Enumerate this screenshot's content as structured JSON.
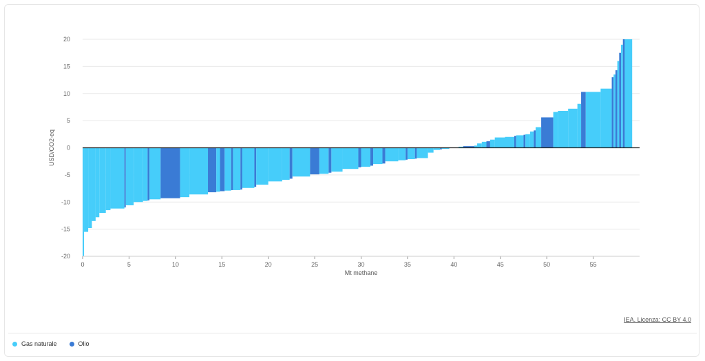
{
  "colors": {
    "gas": "#46cdfa",
    "oil": "#3a7bd5",
    "grid": "#e9e9e9",
    "zero": "#222222",
    "axis_text": "#666666"
  },
  "chart_data": {
    "type": "bar",
    "subtype": "marginal-abatement-cost-curve",
    "title": "",
    "xlabel": "Mt methane",
    "ylabel": "USD/CO2-eq",
    "xlim": [
      0,
      60
    ],
    "ylim": [
      -20,
      20
    ],
    "xticks": [
      0,
      5,
      10,
      15,
      20,
      25,
      30,
      35,
      40,
      45,
      50,
      55
    ],
    "yticks": [
      -20,
      -15,
      -10,
      -5,
      0,
      5,
      10,
      15,
      20
    ],
    "grid": true,
    "legend_position": "bottom-left",
    "series": [
      {
        "name": "Gas naturale",
        "key": "gas"
      },
      {
        "name": "Olio",
        "key": "oil"
      }
    ],
    "segments": [
      {
        "series": "gas",
        "x0": 0,
        "x1": 0.15,
        "y": -20
      },
      {
        "series": "gas",
        "x0": 0.15,
        "x1": 0.6,
        "y": -15.5
      },
      {
        "series": "gas",
        "x0": 0.6,
        "x1": 1.0,
        "y": -14.8
      },
      {
        "series": "gas",
        "x0": 1.0,
        "x1": 1.4,
        "y": -13.5
      },
      {
        "series": "gas",
        "x0": 1.4,
        "x1": 1.8,
        "y": -12.8
      },
      {
        "series": "gas",
        "x0": 1.8,
        "x1": 2.5,
        "y": -12.0
      },
      {
        "series": "gas",
        "x0": 2.5,
        "x1": 3.0,
        "y": -11.5
      },
      {
        "series": "gas",
        "x0": 3.0,
        "x1": 4.5,
        "y": -11.2
      },
      {
        "series": "oil",
        "x0": 4.5,
        "x1": 4.65,
        "y": -11.0
      },
      {
        "series": "gas",
        "x0": 4.65,
        "x1": 5.5,
        "y": -10.6
      },
      {
        "series": "gas",
        "x0": 5.5,
        "x1": 6.5,
        "y": -10.0
      },
      {
        "series": "gas",
        "x0": 6.5,
        "x1": 7.0,
        "y": -9.8
      },
      {
        "series": "oil",
        "x0": 7.0,
        "x1": 7.2,
        "y": -9.7
      },
      {
        "series": "gas",
        "x0": 7.2,
        "x1": 8.4,
        "y": -9.5
      },
      {
        "series": "oil",
        "x0": 8.4,
        "x1": 10.5,
        "y": -9.3
      },
      {
        "series": "gas",
        "x0": 10.5,
        "x1": 11.5,
        "y": -9.1
      },
      {
        "series": "gas",
        "x0": 11.5,
        "x1": 13.5,
        "y": -8.6
      },
      {
        "series": "oil",
        "x0": 13.5,
        "x1": 14.4,
        "y": -8.2
      },
      {
        "series": "gas",
        "x0": 14.4,
        "x1": 14.8,
        "y": -8.1
      },
      {
        "series": "oil",
        "x0": 14.8,
        "x1": 15.3,
        "y": -8.0
      },
      {
        "series": "gas",
        "x0": 15.3,
        "x1": 16.0,
        "y": -7.9
      },
      {
        "series": "oil",
        "x0": 16.0,
        "x1": 16.2,
        "y": -7.8
      },
      {
        "series": "gas",
        "x0": 16.2,
        "x1": 17.0,
        "y": -7.8
      },
      {
        "series": "oil",
        "x0": 17.0,
        "x1": 17.2,
        "y": -7.7
      },
      {
        "series": "gas",
        "x0": 17.2,
        "x1": 18.5,
        "y": -7.4
      },
      {
        "series": "oil",
        "x0": 18.5,
        "x1": 18.7,
        "y": -7.2
      },
      {
        "series": "gas",
        "x0": 18.7,
        "x1": 20.0,
        "y": -6.8
      },
      {
        "series": "gas",
        "x0": 20.0,
        "x1": 21.5,
        "y": -6.2
      },
      {
        "series": "gas",
        "x0": 21.5,
        "x1": 22.3,
        "y": -5.9
      },
      {
        "series": "oil",
        "x0": 22.3,
        "x1": 22.6,
        "y": -5.7
      },
      {
        "series": "gas",
        "x0": 22.6,
        "x1": 24.5,
        "y": -5.3
      },
      {
        "series": "oil",
        "x0": 24.5,
        "x1": 25.5,
        "y": -4.9
      },
      {
        "series": "gas",
        "x0": 25.5,
        "x1": 26.5,
        "y": -4.8
      },
      {
        "series": "oil",
        "x0": 26.5,
        "x1": 26.8,
        "y": -4.6
      },
      {
        "series": "gas",
        "x0": 26.8,
        "x1": 28.0,
        "y": -4.4
      },
      {
        "series": "gas",
        "x0": 28.0,
        "x1": 29.7,
        "y": -3.9
      },
      {
        "series": "oil",
        "x0": 29.7,
        "x1": 30.0,
        "y": -3.6
      },
      {
        "series": "gas",
        "x0": 30.0,
        "x1": 31.0,
        "y": -3.5
      },
      {
        "series": "oil",
        "x0": 31.0,
        "x1": 31.3,
        "y": -3.3
      },
      {
        "series": "gas",
        "x0": 31.3,
        "x1": 32.3,
        "y": -3.0
      },
      {
        "series": "oil",
        "x0": 32.3,
        "x1": 32.6,
        "y": -2.9
      },
      {
        "series": "gas",
        "x0": 32.6,
        "x1": 34.0,
        "y": -2.5
      },
      {
        "series": "gas",
        "x0": 34.0,
        "x1": 34.8,
        "y": -2.3
      },
      {
        "series": "oil",
        "x0": 34.8,
        "x1": 35.0,
        "y": -2.2
      },
      {
        "series": "gas",
        "x0": 35.0,
        "x1": 35.8,
        "y": -2.1
      },
      {
        "series": "oil",
        "x0": 35.8,
        "x1": 36.0,
        "y": -2.0
      },
      {
        "series": "gas",
        "x0": 36.0,
        "x1": 37.2,
        "y": -1.9
      },
      {
        "series": "gas",
        "x0": 37.2,
        "x1": 37.8,
        "y": -0.9
      },
      {
        "series": "gas",
        "x0": 37.8,
        "x1": 38.5,
        "y": -0.4
      },
      {
        "series": "oil",
        "x0": 38.5,
        "x1": 38.7,
        "y": -0.3
      },
      {
        "series": "gas",
        "x0": 38.7,
        "x1": 39.5,
        "y": -0.2
      },
      {
        "series": "gas",
        "x0": 39.5,
        "x1": 40.5,
        "y": 0.05
      },
      {
        "series": "gas",
        "x0": 40.5,
        "x1": 41.0,
        "y": 0.2
      },
      {
        "series": "oil",
        "x0": 41.0,
        "x1": 42.2,
        "y": 0.3
      },
      {
        "series": "gas",
        "x0": 42.2,
        "x1": 42.5,
        "y": 0.4
      },
      {
        "series": "gas",
        "x0": 42.5,
        "x1": 43.0,
        "y": 0.8
      },
      {
        "series": "gas",
        "x0": 43.0,
        "x1": 43.5,
        "y": 1.1
      },
      {
        "series": "oil",
        "x0": 43.5,
        "x1": 43.9,
        "y": 1.2
      },
      {
        "series": "gas",
        "x0": 43.9,
        "x1": 44.4,
        "y": 1.5
      },
      {
        "series": "gas",
        "x0": 44.4,
        "x1": 45.5,
        "y": 1.9
      },
      {
        "series": "gas",
        "x0": 45.5,
        "x1": 46.5,
        "y": 2.0
      },
      {
        "series": "oil",
        "x0": 46.5,
        "x1": 46.7,
        "y": 2.2
      },
      {
        "series": "gas",
        "x0": 46.7,
        "x1": 47.5,
        "y": 2.3
      },
      {
        "series": "oil",
        "x0": 47.5,
        "x1": 47.7,
        "y": 2.4
      },
      {
        "series": "gas",
        "x0": 47.7,
        "x1": 48.2,
        "y": 2.5
      },
      {
        "series": "gas",
        "x0": 48.2,
        "x1": 48.6,
        "y": 3.0
      },
      {
        "series": "oil",
        "x0": 48.6,
        "x1": 48.8,
        "y": 3.2
      },
      {
        "series": "gas",
        "x0": 48.8,
        "x1": 49.4,
        "y": 3.8
      },
      {
        "series": "oil",
        "x0": 49.4,
        "x1": 50.7,
        "y": 5.6
      },
      {
        "series": "gas",
        "x0": 50.7,
        "x1": 51.2,
        "y": 6.6
      },
      {
        "series": "gas",
        "x0": 51.2,
        "x1": 52.3,
        "y": 6.8
      },
      {
        "series": "gas",
        "x0": 52.3,
        "x1": 53.3,
        "y": 7.2
      },
      {
        "series": "gas",
        "x0": 53.3,
        "x1": 53.7,
        "y": 8.1
      },
      {
        "series": "oil",
        "x0": 53.7,
        "x1": 54.2,
        "y": 10.3
      },
      {
        "series": "gas",
        "x0": 54.2,
        "x1": 55.8,
        "y": 10.3
      },
      {
        "series": "gas",
        "x0": 55.8,
        "x1": 57.0,
        "y": 10.9
      },
      {
        "series": "oil",
        "x0": 57.0,
        "x1": 57.2,
        "y": 13.0
      },
      {
        "series": "gas",
        "x0": 57.2,
        "x1": 57.4,
        "y": 13.5
      },
      {
        "series": "oil",
        "x0": 57.4,
        "x1": 57.6,
        "y": 14.3
      },
      {
        "series": "gas",
        "x0": 57.6,
        "x1": 57.8,
        "y": 16.0
      },
      {
        "series": "oil",
        "x0": 57.8,
        "x1": 58.0,
        "y": 17.5
      },
      {
        "series": "gas",
        "x0": 58.0,
        "x1": 58.2,
        "y": 19.0
      },
      {
        "series": "oil",
        "x0": 58.2,
        "x1": 58.4,
        "y": 20
      },
      {
        "series": "gas",
        "x0": 58.4,
        "x1": 59.2,
        "y": 20
      }
    ]
  },
  "footer": {
    "credit": "IEA. Licenza: CC BY 4.0"
  },
  "legend": {
    "items": [
      {
        "label": "Gas naturale",
        "key": "gas"
      },
      {
        "label": "Olio",
        "key": "oil"
      }
    ]
  }
}
